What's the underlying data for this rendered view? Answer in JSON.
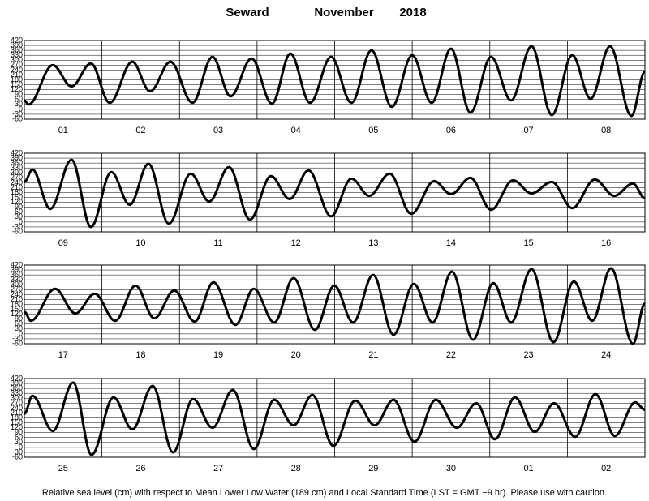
{
  "header": {
    "station": "Seward",
    "month": "November",
    "year": "2018"
  },
  "footer": "Relative sea level (cm) with respect to Mean Lower Low Water (189 cm) and Local Standard Time (LST = GMT −9 hr). Please use with caution.",
  "chart_data": [
    {
      "type": "line",
      "color": "#000000",
      "xlim": [
        0,
        192
      ],
      "ylim": [
        -60,
        420
      ],
      "yticks": [
        -60,
        -30,
        0,
        30,
        60,
        90,
        120,
        150,
        180,
        210,
        240,
        270,
        300,
        330,
        360,
        390,
        420
      ],
      "categories": [
        "01",
        "02",
        "03",
        "04",
        "05",
        "06",
        "07",
        "08"
      ],
      "x": [
        0,
        1.3,
        8.8,
        14.6,
        20.6,
        26.4,
        33.4,
        38.9,
        45.2,
        52,
        58.2,
        63.8,
        70.3,
        76.6,
        82.3,
        88.4,
        94.9,
        101.2,
        107.4,
        113.7,
        120,
        126,
        132,
        138,
        144.4,
        150.6,
        156.9,
        163.2,
        169.5,
        175.2,
        181.2,
        187.8,
        192
      ],
      "values": [
        55,
        30,
        270,
        140,
        280,
        40,
        290,
        110,
        290,
        40,
        320,
        80,
        310,
        35,
        340,
        40,
        320,
        40,
        360,
        15,
        330,
        40,
        370,
        -20,
        320,
        55,
        385,
        -35,
        330,
        65,
        385,
        -40,
        230
      ]
    },
    {
      "type": "line",
      "color": "#000000",
      "xlim": [
        0,
        192
      ],
      "ylim": [
        -60,
        420
      ],
      "yticks": [
        -60,
        -30,
        0,
        30,
        60,
        90,
        120,
        150,
        180,
        210,
        240,
        270,
        300,
        330,
        360,
        390,
        420
      ],
      "categories": [
        "09",
        "10",
        "11",
        "12",
        "13",
        "14",
        "15",
        "16"
      ],
      "x": [
        0,
        2.5,
        8,
        14.6,
        20.6,
        26.9,
        32.6,
        38.4,
        44.7,
        51.5,
        57.2,
        63.3,
        69.8,
        76.3,
        82.1,
        87.9,
        94.9,
        101.2,
        106.7,
        113,
        119.7,
        126.8,
        132,
        138,
        144.4,
        151.2,
        156.9,
        163.2,
        169.5,
        176.5,
        182.5,
        188.3,
        192
      ],
      "values": [
        245,
        320,
        80,
        380,
        -30,
        305,
        105,
        355,
        -10,
        295,
        125,
        335,
        15,
        280,
        140,
        315,
        35,
        265,
        160,
        295,
        50,
        250,
        170,
        270,
        75,
        255,
        175,
        245,
        85,
        260,
        160,
        235,
        145
      ]
    },
    {
      "type": "line",
      "color": "#000000",
      "xlim": [
        0,
        192
      ],
      "ylim": [
        -60,
        420
      ],
      "yticks": [
        -60,
        -30,
        0,
        30,
        60,
        90,
        120,
        150,
        180,
        210,
        240,
        270,
        300,
        330,
        360,
        390,
        420
      ],
      "categories": [
        "17",
        "18",
        "19",
        "20",
        "21",
        "22",
        "23",
        "24"
      ],
      "x": [
        0,
        2,
        9.5,
        15.8,
        21.8,
        28.1,
        34.4,
        40.2,
        46.4,
        52.7,
        58.5,
        65.3,
        71,
        77.3,
        83.3,
        89.9,
        95.9,
        101.7,
        107.9,
        114.2,
        120.5,
        126.3,
        132.3,
        138.8,
        145.1,
        150.6,
        156.9,
        163.7,
        170,
        175.7,
        181.5,
        188.3,
        192
      ],
      "values": [
        135,
        80,
        275,
        125,
        245,
        80,
        295,
        95,
        265,
        75,
        315,
        55,
        275,
        70,
        340,
        25,
        295,
        70,
        360,
        -5,
        305,
        70,
        380,
        -35,
        310,
        70,
        395,
        -50,
        320,
        80,
        400,
        -60,
        185
      ]
    },
    {
      "type": "line",
      "color": "#000000",
      "xlim": [
        0,
        192
      ],
      "ylim": [
        -60,
        420
      ],
      "yticks": [
        -60,
        -30,
        0,
        30,
        60,
        90,
        120,
        150,
        180,
        210,
        240,
        270,
        300,
        330,
        360,
        390,
        420
      ],
      "categories": [
        "25",
        "26",
        "27",
        "28",
        "29",
        "30",
        "01",
        "02"
      ],
      "x": [
        0,
        2.5,
        8.8,
        15.1,
        20.8,
        27.6,
        33.4,
        39.7,
        46,
        52.2,
        58.2,
        64.5,
        71,
        77.3,
        83.3,
        89.1,
        95.6,
        102.4,
        108.4,
        114.2,
        120.7,
        127.3,
        133.8,
        139.8,
        145.6,
        151.8,
        157.9,
        163.9,
        170.4,
        176.7,
        182.7,
        189,
        192
      ],
      "values": [
        205,
        315,
        100,
        395,
        -45,
        305,
        110,
        375,
        -30,
        295,
        120,
        350,
        -10,
        290,
        135,
        320,
        10,
        285,
        135,
        290,
        35,
        290,
        120,
        270,
        50,
        305,
        95,
        270,
        65,
        325,
        70,
        275,
        230
      ]
    }
  ]
}
